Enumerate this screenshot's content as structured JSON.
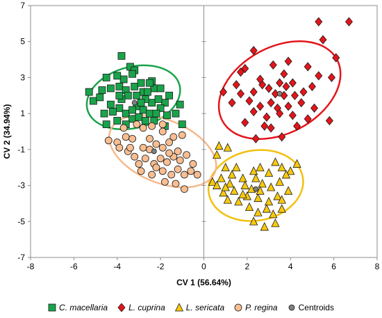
{
  "chart_data": {
    "type": "scatter",
    "title": "",
    "xlabel": "CV 1 (56.64%)",
    "ylabel": "CV 2 (34.94%)",
    "xlim": [
      -8,
      8
    ],
    "ylim": [
      -7,
      7
    ],
    "xticks": [
      "-8",
      "-6",
      "-4",
      "-2",
      "0",
      "2",
      "4",
      "6",
      "8"
    ],
    "yticks": [
      "-7",
      "-5",
      "-3",
      "-1",
      "1",
      "3",
      "5",
      "7"
    ],
    "grid": false,
    "legend_position": "bottom",
    "series": [
      {
        "name": "C. macellaria",
        "marker": "square",
        "color": "#1aa34a",
        "points": [
          [
            -3.8,
            4.2
          ],
          [
            -3.4,
            3.6
          ],
          [
            -3.2,
            3.4
          ],
          [
            -4.5,
            3.0
          ],
          [
            -3.7,
            2.9
          ],
          [
            -2.4,
            2.8
          ],
          [
            -2.3,
            2.4
          ],
          [
            -5.3,
            2.2
          ],
          [
            -4.3,
            2.4
          ],
          [
            -3.9,
            2.5
          ],
          [
            -3.6,
            2.3
          ],
          [
            -2.8,
            2.2
          ],
          [
            -5.1,
            1.7
          ],
          [
            -4.8,
            1.9
          ],
          [
            -4.3,
            1.5
          ],
          [
            -3.9,
            1.3
          ],
          [
            -3.5,
            2.0
          ],
          [
            -3.1,
            2.0
          ],
          [
            -2.6,
            2.2
          ],
          [
            -2.4,
            1.6
          ],
          [
            -4.6,
            1.0
          ],
          [
            -4.2,
            1.1
          ],
          [
            -3.6,
            1.0
          ],
          [
            -3.1,
            1.4
          ],
          [
            -2.8,
            1.2
          ],
          [
            -2.5,
            1.0
          ],
          [
            -1.8,
            1.6
          ],
          [
            -2.1,
            1.8
          ],
          [
            -2.0,
            1.3
          ],
          [
            -1.7,
            0.9
          ],
          [
            -1.1,
            1.5
          ],
          [
            -1.3,
            1.0
          ],
          [
            -4.5,
            0.4
          ],
          [
            -3.3,
            0.7
          ],
          [
            -3.0,
            0.8
          ],
          [
            -2.7,
            0.6
          ],
          [
            -2.3,
            0.6
          ],
          [
            -1.8,
            0.3
          ],
          [
            -1.0,
            0.4
          ],
          [
            -3.3,
            3.2
          ],
          [
            -4.0,
            3.1
          ],
          [
            -3.2,
            2.5
          ],
          [
            -4.7,
            2.3
          ],
          [
            -2.7,
            1.8
          ],
          [
            -3.3,
            1.2
          ],
          [
            -2.5,
            2.7
          ],
          [
            -3.8,
            1.8
          ],
          [
            -4.0,
            0.6
          ],
          [
            -2.0,
            2.4
          ],
          [
            -1.6,
            2.0
          ],
          [
            -2.9,
            2.7
          ],
          [
            -2.2,
            1.0
          ],
          [
            -3.6,
            0.4
          ],
          [
            -3.9,
            2.0
          ],
          [
            -2.9,
            1.6
          ]
        ]
      },
      {
        "name": "L. cuprina",
        "marker": "diamond",
        "color": "#e3151a",
        "points": [
          [
            5.3,
            6.1
          ],
          [
            6.7,
            6.1
          ],
          [
            5.5,
            5.1
          ],
          [
            2.3,
            4.5
          ],
          [
            6.1,
            4.1
          ],
          [
            3.9,
            3.9
          ],
          [
            3.2,
            3.7
          ],
          [
            4.8,
            3.6
          ],
          [
            1.7,
            3.3
          ],
          [
            3.7,
            3.2
          ],
          [
            5.3,
            3.1
          ],
          [
            5.9,
            3.0
          ],
          [
            1.5,
            2.6
          ],
          [
            2.7,
            2.6
          ],
          [
            3.5,
            2.7
          ],
          [
            4.1,
            2.7
          ],
          [
            0.9,
            2.2
          ],
          [
            1.7,
            2.1
          ],
          [
            2.3,
            2.2
          ],
          [
            3.0,
            2.4
          ],
          [
            3.7,
            2.0
          ],
          [
            4.2,
            2.0
          ],
          [
            4.6,
            2.2
          ],
          [
            1.3,
            1.6
          ],
          [
            2.1,
            1.7
          ],
          [
            2.6,
            1.4
          ],
          [
            3.1,
            1.6
          ],
          [
            3.4,
            1.3
          ],
          [
            3.9,
            1.4
          ],
          [
            5.1,
            1.3
          ],
          [
            2.3,
            1.1
          ],
          [
            2.9,
            0.8
          ],
          [
            3.5,
            1.0
          ],
          [
            4.1,
            0.9
          ],
          [
            4.8,
            0.7
          ],
          [
            5.8,
            0.6
          ],
          [
            1.9,
            0.5
          ],
          [
            3.1,
            0.2
          ],
          [
            4.3,
            0.3
          ],
          [
            2.4,
            -0.4
          ],
          [
            3.6,
            -0.3
          ],
          [
            2.6,
            2.9
          ],
          [
            3.3,
            2.1
          ],
          [
            1.9,
            3.5
          ],
          [
            4.5,
            1.6
          ],
          [
            3.8,
            2.5
          ],
          [
            2.8,
            0.3
          ],
          [
            5.0,
            2.5
          ]
        ]
      },
      {
        "name": "L. sericata",
        "marker": "triangle",
        "color": "#f7c90e",
        "points": [
          [
            0.7,
            -0.8
          ],
          [
            1.1,
            -0.9
          ],
          [
            0.6,
            -1.3
          ],
          [
            1.0,
            -2.0
          ],
          [
            1.5,
            -2.0
          ],
          [
            0.8,
            -2.6
          ],
          [
            0.4,
            -2.8
          ],
          [
            1.2,
            -2.9
          ],
          [
            1.8,
            -2.6
          ],
          [
            2.3,
            -2.2
          ],
          [
            2.6,
            -2.0
          ],
          [
            3.3,
            -1.7
          ],
          [
            3.6,
            -2.0
          ],
          [
            4.0,
            -2.2
          ],
          [
            4.3,
            -1.8
          ],
          [
            3.8,
            -2.4
          ],
          [
            0.6,
            -3.0
          ],
          [
            0.9,
            -3.4
          ],
          [
            1.4,
            -3.3
          ],
          [
            1.9,
            -3.0
          ],
          [
            2.2,
            -3.2
          ],
          [
            2.7,
            -2.9
          ],
          [
            3.1,
            -3.1
          ],
          [
            3.5,
            -2.8
          ],
          [
            3.9,
            -3.3
          ],
          [
            1.1,
            -3.8
          ],
          [
            1.6,
            -3.9
          ],
          [
            2.0,
            -3.6
          ],
          [
            2.5,
            -3.7
          ],
          [
            3.0,
            -3.9
          ],
          [
            3.4,
            -3.6
          ],
          [
            2.1,
            -4.2
          ],
          [
            2.5,
            -4.5
          ],
          [
            2.9,
            -4.3
          ],
          [
            3.2,
            -4.6
          ],
          [
            3.6,
            -4.3
          ],
          [
            2.3,
            -5.0
          ],
          [
            3.3,
            -5.1
          ],
          [
            2.8,
            -5.3
          ],
          [
            1.3,
            -2.4
          ],
          [
            2.4,
            -2.6
          ],
          [
            3.0,
            -2.3
          ],
          [
            1.8,
            -3.5
          ],
          [
            2.6,
            -3.3
          ],
          [
            3.6,
            -3.8
          ],
          [
            1.0,
            -3.1
          ]
        ]
      },
      {
        "name": "P. regina",
        "marker": "circle",
        "color": "#f8bd91",
        "points": [
          [
            -4.4,
            -0.5
          ],
          [
            -4.0,
            -0.6
          ],
          [
            -3.6,
            -0.3
          ],
          [
            -3.3,
            -0.4
          ],
          [
            -3.1,
            0.4
          ],
          [
            -2.8,
            0.2
          ],
          [
            -2.4,
            0.3
          ],
          [
            -1.9,
            0.4
          ],
          [
            -3.7,
            0.2
          ],
          [
            -3.9,
            -0.9
          ],
          [
            -3.5,
            -1.1
          ],
          [
            -3.2,
            -1.4
          ],
          [
            -2.8,
            -0.9
          ],
          [
            -2.5,
            -1.0
          ],
          [
            -2.2,
            -0.7
          ],
          [
            -1.9,
            -0.9
          ],
          [
            -1.6,
            -0.6
          ],
          [
            -1.4,
            -0.3
          ],
          [
            -1.2,
            -1.1
          ],
          [
            -3.0,
            -1.8
          ],
          [
            -2.7,
            -1.5
          ],
          [
            -2.3,
            -1.8
          ],
          [
            -2.0,
            -1.5
          ],
          [
            -1.7,
            -1.7
          ],
          [
            -1.4,
            -1.4
          ],
          [
            -1.1,
            -1.6
          ],
          [
            -0.8,
            -1.3
          ],
          [
            -0.5,
            -1.8
          ],
          [
            -2.9,
            -2.2
          ],
          [
            -2.4,
            -2.4
          ],
          [
            -1.9,
            -2.2
          ],
          [
            -1.5,
            -2.4
          ],
          [
            -1.2,
            -2.1
          ],
          [
            -0.9,
            -2.4
          ],
          [
            -0.6,
            -2.2
          ],
          [
            -0.3,
            -2.4
          ],
          [
            -1.8,
            -2.8
          ],
          [
            -1.3,
            -2.9
          ],
          [
            -0.9,
            -3.2
          ],
          [
            -2.5,
            -0.4
          ],
          [
            -3.4,
            -0.9
          ],
          [
            -1.0,
            -0.2
          ],
          [
            -1.9,
            0.0
          ],
          [
            -2.2,
            -2.0
          ],
          [
            -1.6,
            -1.2
          ]
        ]
      },
      {
        "name": "Centroids",
        "marker": "circle",
        "color": "#808080",
        "points": [
          [
            -3.2,
            1.6
          ],
          [
            -2.3,
            -1.1
          ],
          [
            3.5,
            2.1
          ],
          [
            2.4,
            -3.2
          ]
        ]
      }
    ],
    "ellipses": [
      {
        "group": "C. macellaria",
        "color": "#1aa34a",
        "cx": -3.25,
        "cy": 1.9,
        "rx": 2.2,
        "ry": 1.7,
        "angle_deg": 15
      },
      {
        "group": "L. cuprina",
        "color": "#e3151a",
        "cx": 3.5,
        "cy": 2.3,
        "rx": 3.0,
        "ry": 2.4,
        "angle_deg": 28
      },
      {
        "group": "L. sericata",
        "color": "#f2c00e",
        "cx": 2.4,
        "cy": -3.0,
        "rx": 2.2,
        "ry": 1.95,
        "angle_deg": 10
      },
      {
        "group": "P. regina",
        "color": "#f5b88a",
        "cx": -1.9,
        "cy": -1.1,
        "rx": 2.6,
        "ry": 1.75,
        "angle_deg": -22
      }
    ]
  }
}
